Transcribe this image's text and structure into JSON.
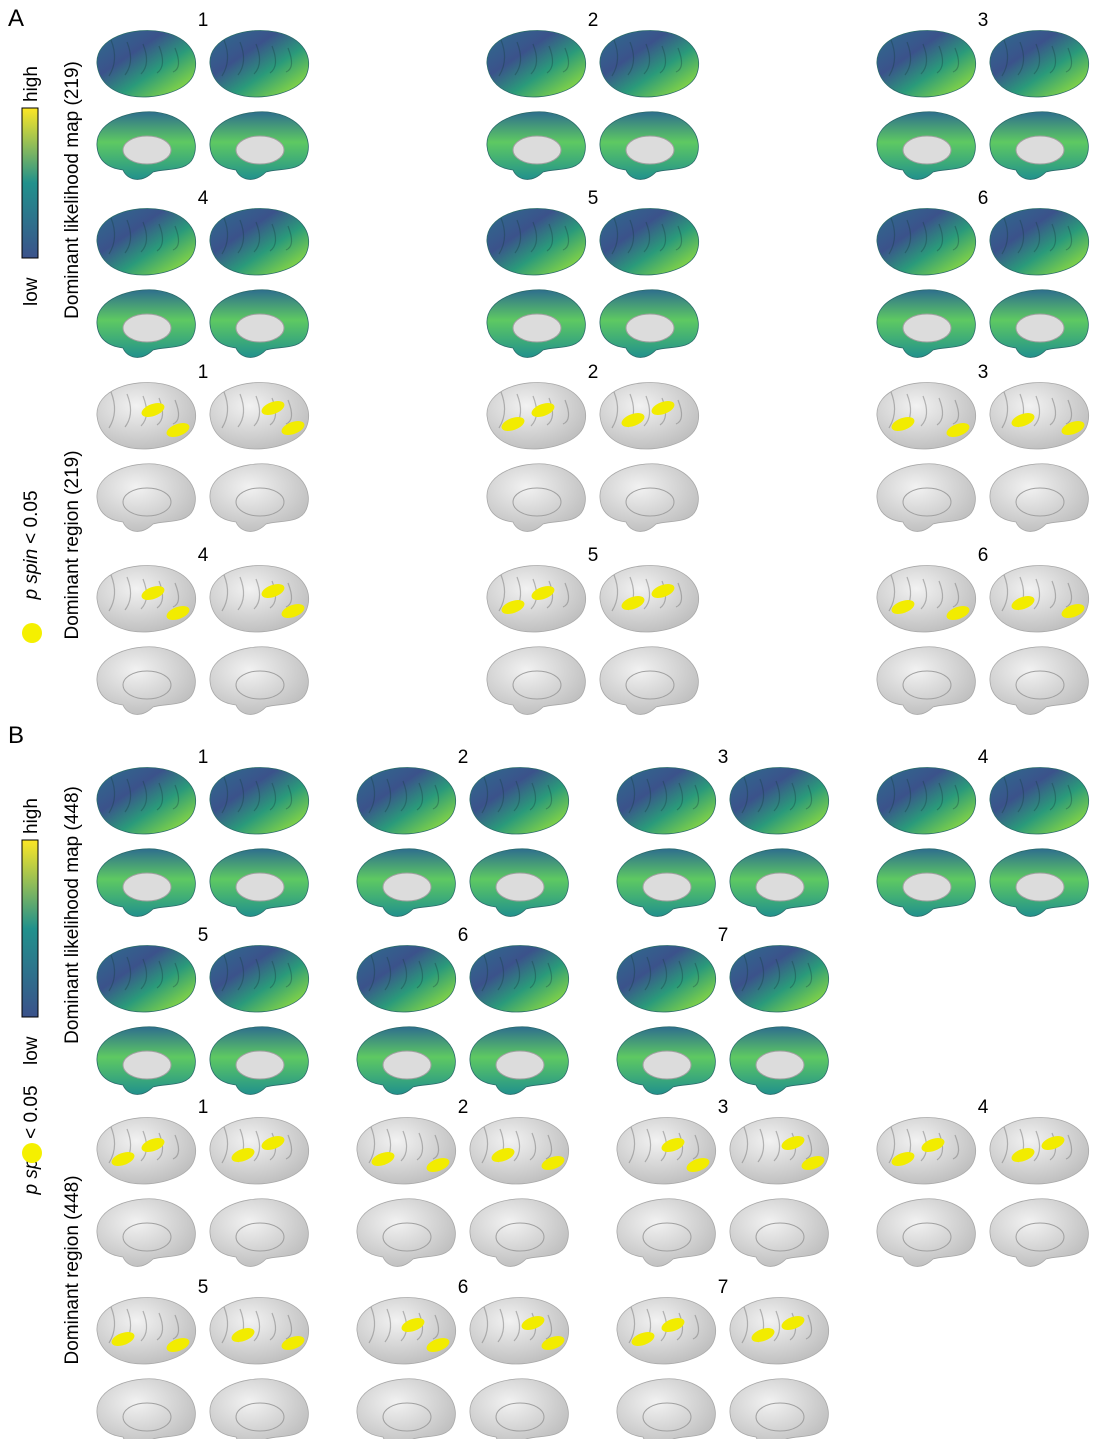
{
  "panels": [
    {
      "label": "A",
      "likelihood": {
        "title": "Dominant likelihood map (219)",
        "colorbar": {
          "high": "high",
          "low": "low"
        },
        "maps": [
          "1",
          "2",
          "3",
          "4",
          "5",
          "6"
        ]
      },
      "region": {
        "title": "Dominant region (219)",
        "legend": {
          "italic": "p spin",
          "rest": "< 0.05"
        },
        "maps": [
          "1",
          "2",
          "3",
          "4",
          "5",
          "6"
        ]
      }
    },
    {
      "label": "B",
      "likelihood": {
        "title": "Dominant likelihood map (448)",
        "colorbar": {
          "high": "high",
          "low": "low"
        },
        "maps": [
          "1",
          "2",
          "3",
          "4",
          "5",
          "6",
          "7"
        ]
      },
      "region": {
        "title": "Dominant region (448)",
        "legend": {
          "italic": "p spin",
          "rest": "< 0.05"
        },
        "maps": [
          "1",
          "2",
          "3",
          "4",
          "5",
          "6",
          "7"
        ]
      }
    }
  ]
}
